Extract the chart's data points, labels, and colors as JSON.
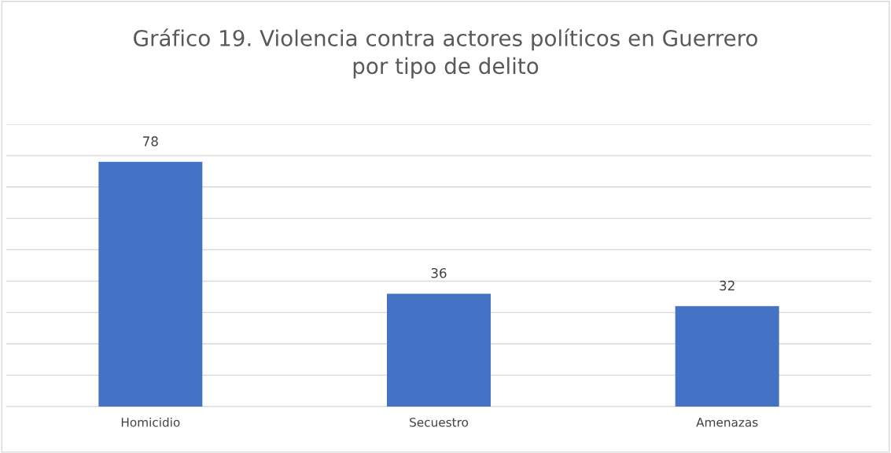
{
  "chart_data": {
    "type": "bar",
    "title": "Gráfico 19. Violencia contra actores políticos en Guerrero\npor tipo de delito",
    "categories": [
      "Homicidio",
      "Secuestro",
      "Amenazas"
    ],
    "values": [
      78,
      36,
      32
    ],
    "color": "#4472c4",
    "ylim": [
      0,
      90
    ],
    "yticks": [
      {
        "value": 0,
        "label": null
      },
      {
        "value": 10,
        "label": null
      },
      {
        "value": 20,
        "label": null
      },
      {
        "value": 30,
        "label": null
      },
      {
        "value": 40,
        "label": null
      },
      {
        "value": 50,
        "label": null
      },
      {
        "value": 60,
        "label": null
      },
      {
        "value": 70,
        "label": null
      },
      {
        "value": 80,
        "label": null
      },
      {
        "value": 90,
        "label": null
      }
    ],
    "tick_labels": "x",
    "grid": "y",
    "data_labels": true
  }
}
